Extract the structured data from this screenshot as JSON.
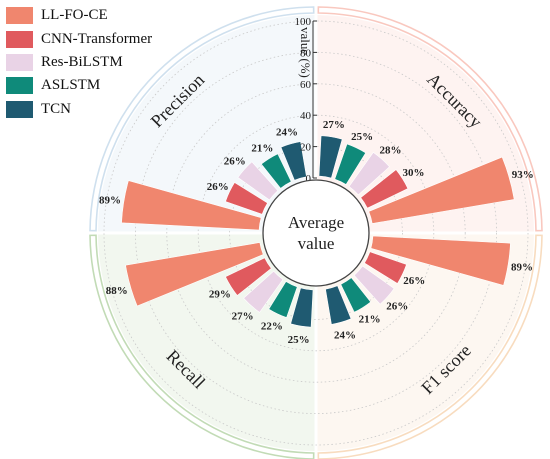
{
  "chart_data": {
    "type": "bar",
    "layout": "radial",
    "center_label": [
      "Average",
      "value"
    ],
    "radial_axis": {
      "label": "value (%)",
      "range": [
        0,
        100
      ],
      "ticks": [
        "0",
        "20",
        "40",
        "60",
        "80",
        "100"
      ]
    },
    "categories": [
      "Accuracy",
      "F1 score",
      "Recall",
      "Precision"
    ],
    "sector_colors": {
      "Accuracy": "#f9c8bf",
      "F1 score": "#f8dcbf",
      "Recall": "#c2dbb6",
      "Precision": "#cfe0ee"
    },
    "series": [
      {
        "name": "LL-FO-CE",
        "color": "#f0866e",
        "values": [
          93,
          89,
          88,
          89
        ],
        "labels": [
          "93%",
          "89%",
          "88%",
          "89%"
        ]
      },
      {
        "name": "CNN-Transformer",
        "color": "#e05a5e",
        "values": [
          30,
          26,
          29,
          26
        ],
        "labels": [
          "30%",
          "26%",
          "29%",
          "26%"
        ]
      },
      {
        "name": "Res-BiLSTM",
        "color": "#e9d3e6",
        "values": [
          28,
          26,
          27,
          26
        ],
        "labels": [
          "28%",
          "26%",
          "27%",
          "26%"
        ]
      },
      {
        "name": "ASLSTM",
        "color": "#0f8a7a",
        "values": [
          25,
          21,
          22,
          21
        ],
        "labels": [
          "25%",
          "21%",
          "22%",
          "21%"
        ]
      },
      {
        "name": "TCN",
        "color": "#1f5a71",
        "values": [
          27,
          24,
          25,
          24
        ],
        "labels": [
          "27%",
          "24%",
          "25%",
          "24%"
        ]
      }
    ]
  }
}
